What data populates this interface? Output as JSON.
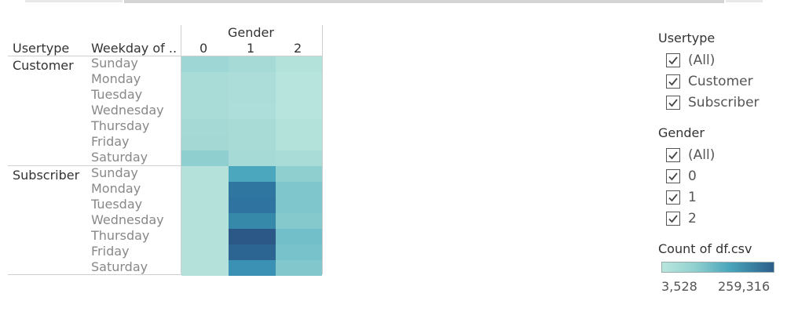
{
  "table": {
    "headers": {
      "usertype": "Usertype",
      "weekday": "Weekday of ..",
      "gender": "Gender",
      "gender_values": [
        "0",
        "1",
        "2"
      ]
    },
    "groups": [
      {
        "name": "Customer",
        "days": [
          "Sunday",
          "Monday",
          "Tuesday",
          "Wednesday",
          "Thursday",
          "Friday",
          "Saturday"
        ],
        "colors": [
          [
            "#9dd6d4",
            "#a6dad6",
            "#b2e2da"
          ],
          [
            "#a9dcd7",
            "#acddd8",
            "#b7e4dc"
          ],
          [
            "#a9dcd7",
            "#acddd8",
            "#b7e4dc"
          ],
          [
            "#a9dcd7",
            "#aeded9",
            "#b7e4dc"
          ],
          [
            "#a4d9d5",
            "#a8dbd6",
            "#b3e2db"
          ],
          [
            "#a3d8d5",
            "#a8dbd6",
            "#b3e2db"
          ],
          [
            "#8fcfd0",
            "#a6dad6",
            "#a9dcd7"
          ]
        ]
      },
      {
        "name": "Subscriber",
        "days": [
          "Sunday",
          "Monday",
          "Tuesday",
          "Wednesday",
          "Thursday",
          "Friday",
          "Saturday"
        ],
        "colors": [
          [
            "#b4e2da",
            "#4aa7bd",
            "#90cfd0"
          ],
          [
            "#b4e2da",
            "#2f77a0",
            "#7fc6cc"
          ],
          [
            "#b4e2da",
            "#2f73a0",
            "#7fc6cc"
          ],
          [
            "#b4e2da",
            "#3789aa",
            "#86c9cd"
          ],
          [
            "#b4e2da",
            "#2b5886",
            "#72bfca"
          ],
          [
            "#b4e2da",
            "#2d6592",
            "#77c2cb"
          ],
          [
            "#b4e2da",
            "#3a91b3",
            "#82c7cc"
          ]
        ]
      }
    ]
  },
  "filters": {
    "usertype": {
      "title": "Usertype",
      "items": [
        "(All)",
        "Customer",
        "Subscriber"
      ]
    },
    "gender": {
      "title": "Gender",
      "items": [
        "(All)",
        "0",
        "1",
        "2"
      ]
    }
  },
  "legend": {
    "title": "Count of df.csv",
    "min_label": "3,528",
    "max_label": "259,316"
  }
}
